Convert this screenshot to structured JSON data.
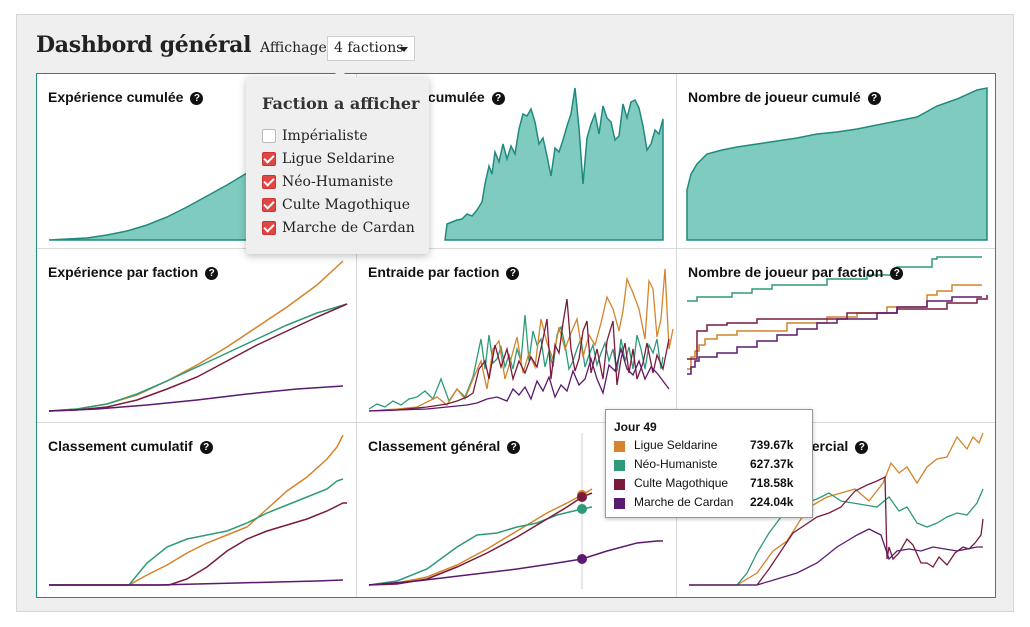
{
  "header": {
    "title": "Dashbord général",
    "display_label": "Affichage",
    "display_value": "4 factions"
  },
  "colors": {
    "accent": "#1f8a7d",
    "area_fill": "#7fcbc0",
    "checkbox_checked": "#e04646",
    "factions": {
      "Ligue Seldarine": "#d4842a",
      "Néo-Humaniste": "#2d9a7a",
      "Culte Magothique": "#7a1a3d",
      "Marche de Cardan": "#5a1a6e"
    }
  },
  "panels": [
    {
      "title": "Expérience cumulée"
    },
    {
      "title": "Entraide cumulée"
    },
    {
      "title": "Nombre de joueur cumulé"
    },
    {
      "title": "Expérience par faction"
    },
    {
      "title": "Entraide par faction"
    },
    {
      "title": "Nombre de joueur par faction"
    },
    {
      "title": "Classement cumulatif"
    },
    {
      "title": "Classement général"
    },
    {
      "title": "Classement commercial"
    }
  ],
  "popover": {
    "title": "Faction a afficher",
    "options": [
      {
        "label": "Impérialiste",
        "checked": false
      },
      {
        "label": "Ligue Seldarine",
        "checked": true
      },
      {
        "label": "Néo-Humaniste",
        "checked": true
      },
      {
        "label": "Culte Magothique",
        "checked": true
      },
      {
        "label": "Marche de Cardan",
        "checked": true
      }
    ]
  },
  "tooltip": {
    "title": "Jour 49",
    "rows": [
      {
        "name": "Ligue Seldarine",
        "value": "739.67k",
        "color": "#d4842a"
      },
      {
        "name": "Néo-Humaniste",
        "value": "627.37k",
        "color": "#2d9a7a"
      },
      {
        "name": "Culte Magothique",
        "value": "718.58k",
        "color": "#7a1a3d"
      },
      {
        "name": "Marche de Cardan",
        "value": "224.04k",
        "color": "#5a1a6e"
      }
    ]
  }
}
